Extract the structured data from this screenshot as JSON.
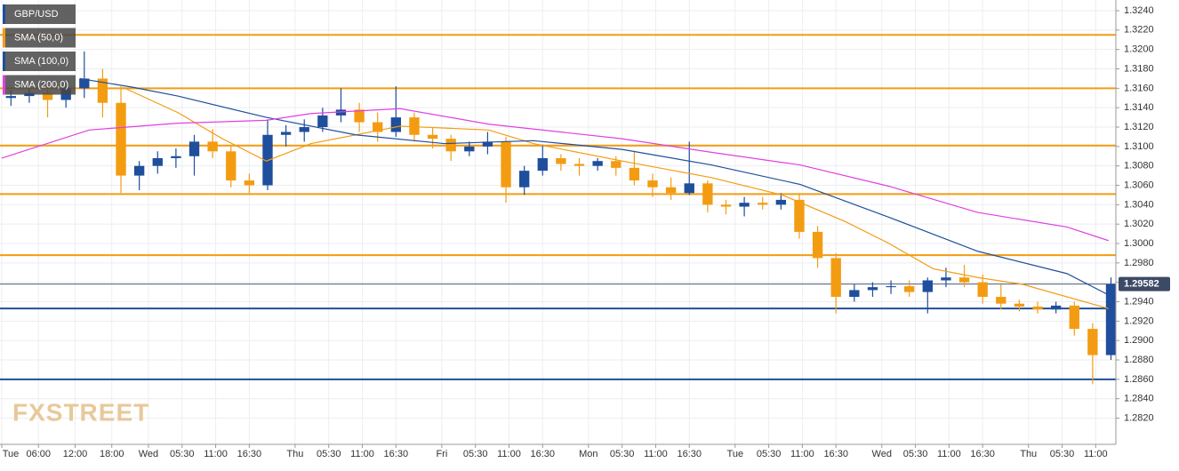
{
  "chart_data": {
    "type": "candlestick",
    "symbol": "GBP/USD",
    "watermark": "FXSTREET",
    "up_color": "#1f4e9c",
    "down_color": "#f39c12",
    "grid": true,
    "xlim": [
      0,
      182.3
    ],
    "ylim": [
      1.2793,
      1.3251
    ],
    "xticks": [
      {
        "value": 0,
        "label": "Tue"
      },
      {
        "value": 6,
        "label": "06:00"
      },
      {
        "value": 12,
        "label": "12:00"
      },
      {
        "value": 18,
        "label": "18:00"
      },
      {
        "value": 24,
        "label": "Wed"
      },
      {
        "value": 29.5,
        "label": "05:30"
      },
      {
        "value": 35,
        "label": "11:00"
      },
      {
        "value": 40.5,
        "label": "16:30"
      },
      {
        "value": 48,
        "label": "Thu"
      },
      {
        "value": 53.5,
        "label": "05:30"
      },
      {
        "value": 59,
        "label": "11:00"
      },
      {
        "value": 64.5,
        "label": "16:30"
      },
      {
        "value": 72,
        "label": "Fri"
      },
      {
        "value": 77.5,
        "label": "05:30"
      },
      {
        "value": 83,
        "label": "11:00"
      },
      {
        "value": 88.5,
        "label": "16:30"
      },
      {
        "value": 96,
        "label": "Mon"
      },
      {
        "value": 101.5,
        "label": "05:30"
      },
      {
        "value": 107,
        "label": "11:00"
      },
      {
        "value": 112.5,
        "label": "16:30"
      },
      {
        "value": 120,
        "label": "Tue"
      },
      {
        "value": 125.5,
        "label": "05:30"
      },
      {
        "value": 131,
        "label": "11:00"
      },
      {
        "value": 136.5,
        "label": "16:30"
      },
      {
        "value": 144,
        "label": "Wed"
      },
      {
        "value": 149.5,
        "label": "05:30"
      },
      {
        "value": 155,
        "label": "11:00"
      },
      {
        "value": 160.5,
        "label": "16:30"
      },
      {
        "value": 168,
        "label": "Thu"
      },
      {
        "value": 173.5,
        "label": "05:30"
      },
      {
        "value": 179,
        "label": "11:00"
      }
    ],
    "yticks": [
      {
        "value": 1.324,
        "label": "1.3240"
      },
      {
        "value": 1.322,
        "label": "1.3220"
      },
      {
        "value": 1.32,
        "label": "1.3200"
      },
      {
        "value": 1.318,
        "label": "1.3180"
      },
      {
        "value": 1.316,
        "label": "1.3160"
      },
      {
        "value": 1.314,
        "label": "1.3140"
      },
      {
        "value": 1.312,
        "label": "1.3120"
      },
      {
        "value": 1.31,
        "label": "1.3100"
      },
      {
        "value": 1.308,
        "label": "1.3080"
      },
      {
        "value": 1.306,
        "label": "1.3060"
      },
      {
        "value": 1.304,
        "label": "1.3040"
      },
      {
        "value": 1.302,
        "label": "1.3020"
      },
      {
        "value": 1.3,
        "label": "1.3000"
      },
      {
        "value": 1.298,
        "label": "1.2980"
      },
      {
        "value": 1.296,
        "label": "1.2960"
      },
      {
        "value": 1.294,
        "label": "1.2940"
      },
      {
        "value": 1.292,
        "label": "1.2920"
      },
      {
        "value": 1.29,
        "label": "1.2900"
      },
      {
        "value": 1.288,
        "label": "1.2880"
      },
      {
        "value": 1.286,
        "label": "1.2860"
      },
      {
        "value": 1.284,
        "label": "1.2840"
      },
      {
        "value": 1.282,
        "label": "1.2820"
      }
    ],
    "x": [
      1.5,
      4.5,
      7.5,
      10.5,
      13.5,
      16.5,
      19.5,
      22.5,
      25.5,
      28.5,
      31.5,
      34.5,
      37.5,
      40.5,
      43.5,
      46.5,
      49.5,
      52.5,
      55.5,
      58.5,
      61.5,
      64.5,
      67.5,
      70.5,
      73.5,
      76.5,
      79.5,
      82.5,
      85.5,
      88.5,
      91.5,
      94.5,
      97.5,
      100.5,
      103.5,
      106.5,
      109.5,
      112.5,
      115.5,
      118.5,
      121.5,
      124.5,
      127.5,
      130.5,
      133.5,
      136.5,
      139.5,
      142.5,
      145.5,
      148.5,
      151.5,
      154.5,
      157.5,
      160.5,
      163.5,
      166.5,
      169.5,
      172.5,
      175.5,
      178.5,
      181.5
    ],
    "open": [
      1.315,
      1.3152,
      1.3155,
      1.3148,
      1.316,
      1.317,
      1.3145,
      1.307,
      1.308,
      1.3088,
      1.309,
      1.3105,
      1.3095,
      1.3065,
      1.306,
      1.3112,
      1.3115,
      1.312,
      1.3132,
      1.3138,
      1.3125,
      1.3115,
      1.313,
      1.3112,
      1.3108,
      1.3095,
      1.31,
      1.3105,
      1.3058,
      1.3075,
      1.3088,
      1.3082,
      1.308,
      1.3085,
      1.3078,
      1.3065,
      1.3058,
      1.3052,
      1.3062,
      1.304,
      1.3038,
      1.3042,
      1.304,
      1.3045,
      1.3012,
      1.2985,
      1.2945,
      1.2952,
      1.2955,
      1.2956,
      1.295,
      1.2962,
      1.2965,
      1.296,
      1.2945,
      1.2938,
      1.2935,
      1.2932,
      1.2936,
      1.2912,
      1.2885
    ],
    "high": [
      1.3158,
      1.316,
      1.3162,
      1.3165,
      1.3198,
      1.318,
      1.3162,
      1.3085,
      1.3095,
      1.3098,
      1.3112,
      1.3118,
      1.31,
      1.3072,
      1.3128,
      1.3122,
      1.3128,
      1.314,
      1.316,
      1.3145,
      1.3135,
      1.3162,
      1.3135,
      1.312,
      1.3112,
      1.3105,
      1.3115,
      1.311,
      1.308,
      1.3102,
      1.3092,
      1.3088,
      1.3088,
      1.309,
      1.3095,
      1.3072,
      1.3068,
      1.3105,
      1.3065,
      1.3045,
      1.3048,
      1.3048,
      1.3052,
      1.3052,
      1.3018,
      1.299,
      1.2958,
      1.296,
      1.2962,
      1.2962,
      1.2965,
      1.2975,
      1.2978,
      1.2968,
      1.2958,
      1.2942,
      1.294,
      1.294,
      1.294,
      1.2918,
      1.2965
    ],
    "low": [
      1.3142,
      1.3145,
      1.313,
      1.314,
      1.315,
      1.313,
      1.3052,
      1.3055,
      1.3072,
      1.3078,
      1.307,
      1.3088,
      1.3058,
      1.3052,
      1.3055,
      1.31,
      1.3105,
      1.3115,
      1.3125,
      1.3115,
      1.3105,
      1.311,
      1.3105,
      1.3098,
      1.3085,
      1.309,
      1.3092,
      1.3042,
      1.305,
      1.307,
      1.3075,
      1.307,
      1.3075,
      1.307,
      1.306,
      1.3048,
      1.3045,
      1.305,
      1.3032,
      1.303,
      1.3028,
      1.3035,
      1.3035,
      1.3005,
      1.2975,
      1.2928,
      1.294,
      1.2945,
      1.2948,
      1.2945,
      1.2928,
      1.2955,
      1.2955,
      1.2938,
      1.2932,
      1.293,
      1.2928,
      1.2928,
      1.2905,
      1.2855,
      1.288
    ],
    "close": [
      1.3152,
      1.3155,
      1.3148,
      1.316,
      1.317,
      1.3145,
      1.307,
      1.308,
      1.3088,
      1.309,
      1.3105,
      1.3095,
      1.3065,
      1.306,
      1.3112,
      1.3115,
      1.312,
      1.3132,
      1.3138,
      1.3125,
      1.3115,
      1.313,
      1.3112,
      1.3108,
      1.3095,
      1.31,
      1.3105,
      1.3058,
      1.3075,
      1.3088,
      1.3082,
      1.308,
      1.3085,
      1.3078,
      1.3065,
      1.3058,
      1.3052,
      1.3062,
      1.304,
      1.3038,
      1.3042,
      1.304,
      1.3045,
      1.3012,
      1.2985,
      1.2945,
      1.2952,
      1.2955,
      1.2956,
      1.295,
      1.2962,
      1.2965,
      1.296,
      1.2945,
      1.2938,
      1.2935,
      1.2932,
      1.2936,
      1.2912,
      1.2885,
      1.2958
    ],
    "series": [
      {
        "name": "SMA (50,0)",
        "color": "#f39c12",
        "x": [
          19.8,
          28.8,
          36.1,
          43.3,
          50.6,
          65.2,
          79.7,
          87,
          101.5,
          116.1,
          127.7,
          137.9,
          145.2,
          152.4,
          159.7,
          167,
          181.1
        ],
        "values": [
          1.3161,
          1.3135,
          1.3108,
          1.3085,
          1.3103,
          1.3121,
          1.3117,
          1.3103,
          1.3085,
          1.3068,
          1.305,
          1.3023,
          1.3,
          1.2974,
          1.2965,
          1.2958,
          1.2933
        ]
      },
      {
        "name": "SMA (100,0)",
        "color": "#1f4e9c",
        "x": [
          12.8,
          21.5,
          28.8,
          43.3,
          57.9,
          72.4,
          87,
          101.5,
          116.1,
          130.6,
          145.2,
          159.7,
          174.3,
          181.1
        ],
        "values": [
          1.317,
          1.3161,
          1.3152,
          1.313,
          1.3112,
          1.3103,
          1.3106,
          1.3097,
          1.3081,
          1.3061,
          1.3027,
          1.2992,
          1.2969,
          1.2947
        ]
      },
      {
        "name": "SMA (200,0)",
        "color": "#e040e0",
        "x": [
          0,
          14.3,
          28.8,
          43.3,
          50.6,
          65.2,
          79.7,
          101.5,
          116.1,
          130.6,
          145.2,
          159.7,
          174.3,
          181.1
        ],
        "values": [
          1.3088,
          1.3117,
          1.3124,
          1.3127,
          1.3134,
          1.3139,
          1.3123,
          1.3108,
          1.3094,
          1.3081,
          1.3059,
          1.3032,
          1.3017,
          1.3003
        ]
      }
    ],
    "symbol_color": "#1f4e9c",
    "levels": [
      {
        "value": 1.3215,
        "color": "#f39c12"
      },
      {
        "value": 1.316,
        "color": "#f39c12"
      },
      {
        "value": 1.3101,
        "color": "#f39c12"
      },
      {
        "value": 1.3051,
        "color": "#f39c12"
      },
      {
        "value": 1.2988,
        "color": "#f39c12"
      },
      {
        "value": 1.2933,
        "color": "#1f4e9c"
      },
      {
        "value": 1.286,
        "color": "#1f4e9c"
      }
    ],
    "last_price": 1.29582
  }
}
